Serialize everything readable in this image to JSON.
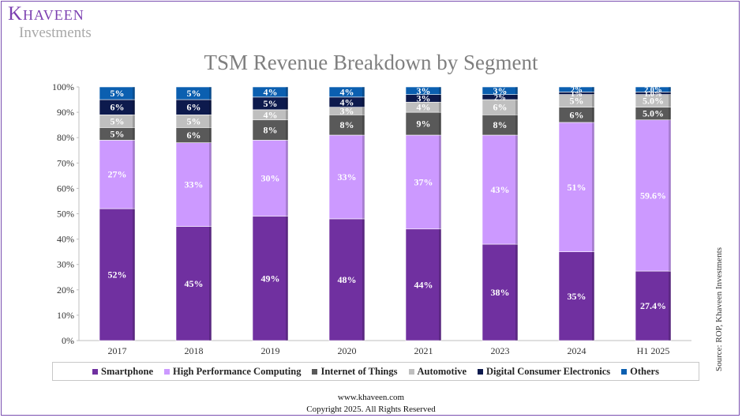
{
  "brand": {
    "name": "Khaveen",
    "sub": "Investments"
  },
  "footer": {
    "url": "www.khaveen.com",
    "copyright": "Copyright 2025. All Rights Reserved"
  },
  "chart_data": {
    "type": "bar",
    "stacked": true,
    "normalized": true,
    "title": "TSM Revenue Breakdown by Segment",
    "source": "Source: ROP, Khaveen Investments",
    "categories": [
      "2017",
      "2018",
      "2019",
      "2020",
      "2021",
      "2023",
      "2024",
      "H1 2025"
    ],
    "ylim": [
      0,
      100
    ],
    "yticks": [
      "0%",
      "10%",
      "20%",
      "30%",
      "40%",
      "50%",
      "60%",
      "70%",
      "80%",
      "90%",
      "100%"
    ],
    "grid": false,
    "legend_position": "bottom",
    "series": [
      {
        "name": "Smartphone",
        "color": "#7030a0",
        "values": [
          52,
          45,
          49,
          48,
          44,
          38,
          35,
          27.4
        ],
        "labels": [
          "52%",
          "45%",
          "49%",
          "48%",
          "44%",
          "38%",
          "35%",
          "27.4%"
        ]
      },
      {
        "name": "High Performance Computing",
        "color": "#cc99ff",
        "values": [
          27,
          33,
          30,
          33,
          37,
          43,
          51,
          59.6
        ],
        "labels": [
          "27%",
          "33%",
          "30%",
          "33%",
          "37%",
          "43%",
          "51%",
          "59.6%"
        ]
      },
      {
        "name": "Internet of Things",
        "color": "#595959",
        "values": [
          5,
          6,
          8,
          8,
          9,
          8,
          6,
          5.0
        ],
        "labels": [
          "5%",
          "6%",
          "8%",
          "8%",
          "9%",
          "8%",
          "6%",
          "5.0%"
        ]
      },
      {
        "name": "Automotive",
        "color": "#bfbfbf",
        "values": [
          5,
          5,
          4,
          3,
          4,
          6,
          5,
          5.0
        ],
        "labels": [
          "5%",
          "5%",
          "4%",
          "3%",
          "4%",
          "6%",
          "5%",
          "5.0%"
        ]
      },
      {
        "name": "Digital Consumer Electronics",
        "color": "#0d1a4d",
        "values": [
          6,
          6,
          5,
          4,
          3,
          2,
          1,
          1.0
        ],
        "labels": [
          "6%",
          "6%",
          "5%",
          "4%",
          "3%",
          "2%",
          "1%",
          "1.0%"
        ]
      },
      {
        "name": "Others",
        "color": "#0b5fb0",
        "values": [
          5,
          5,
          4,
          4,
          3,
          3,
          2,
          2.0
        ],
        "labels": [
          "5%",
          "5%",
          "4%",
          "4%",
          "3%",
          "3%",
          "2%",
          "2.0%"
        ]
      }
    ]
  }
}
